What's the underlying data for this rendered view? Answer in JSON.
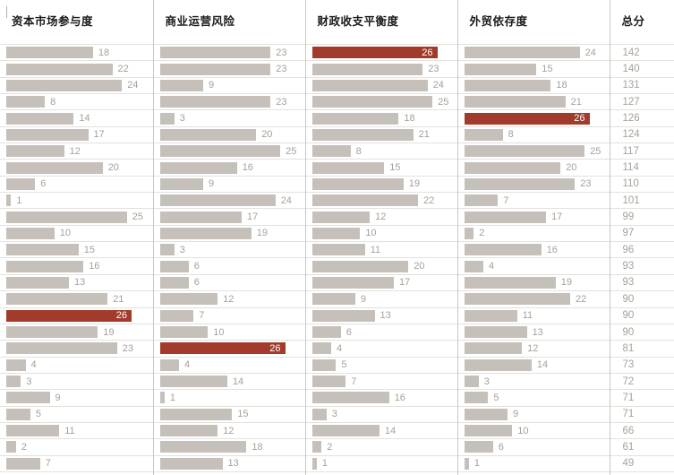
{
  "chart_data": {
    "type": "bar",
    "orientation": "horizontal",
    "layout": "small-multiples-table",
    "n_rows": 26,
    "max_value": 26,
    "highlight_value": 26,
    "grid": "on",
    "columns": [
      {
        "header": "资本市场参与度",
        "values": [
          18,
          22,
          24,
          8,
          14,
          17,
          12,
          20,
          6,
          1,
          25,
          10,
          15,
          16,
          13,
          21,
          26,
          19,
          23,
          4,
          3,
          9,
          5,
          11,
          2,
          7
        ]
      },
      {
        "header": "商业运营风险",
        "values": [
          23,
          23,
          9,
          23,
          3,
          20,
          25,
          16,
          9,
          24,
          17,
          19,
          3,
          6,
          6,
          12,
          7,
          10,
          26,
          4,
          14,
          1,
          15,
          12,
          18,
          13
        ]
      },
      {
        "header": "财政收支平衡度",
        "values": [
          26,
          23,
          24,
          25,
          18,
          21,
          8,
          15,
          19,
          22,
          12,
          10,
          11,
          20,
          17,
          9,
          13,
          6,
          4,
          5,
          7,
          16,
          3,
          14,
          2,
          1
        ]
      },
      {
        "header": "外贸依存度",
        "values": [
          24,
          15,
          18,
          21,
          26,
          8,
          25,
          20,
          23,
          7,
          17,
          2,
          16,
          4,
          19,
          22,
          11,
          13,
          12,
          14,
          3,
          5,
          9,
          10,
          6,
          1
        ]
      }
    ],
    "totals_column": {
      "header": "总分",
      "values": [
        142,
        140,
        131,
        127,
        126,
        124,
        117,
        114,
        110,
        101,
        99,
        97,
        96,
        93,
        93,
        90,
        90,
        90,
        81,
        73,
        72,
        71,
        71,
        66,
        61,
        49
      ]
    },
    "colors": {
      "bar": "#c5c1ba",
      "highlight_bar": "#a23b2c",
      "value_label": "#a6a19a",
      "highlight_label": "#ffffff",
      "header_text": "#1a1a1a",
      "row_grid": "#e4e1db",
      "column_grid": "#cbc7c0",
      "background": "#ffffff"
    }
  }
}
